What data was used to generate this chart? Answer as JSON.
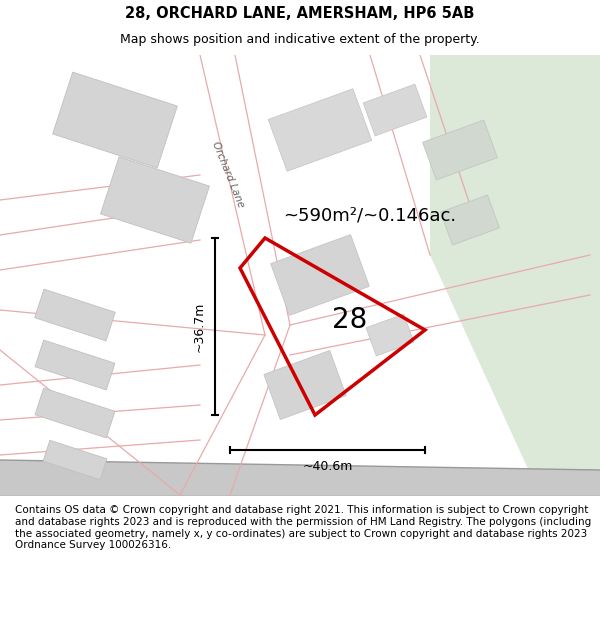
{
  "title": "28, ORCHARD LANE, AMERSHAM, HP6 5AB",
  "subtitle": "Map shows position and indicative extent of the property.",
  "area_text": "~590m²/~0.146ac.",
  "label_28": "28",
  "dim_vertical": "~36.7m",
  "dim_horizontal": "~40.6m",
  "road_label": "Orchard Lane",
  "footer_text": "Contains OS data © Crown copyright and database right 2021. This information is subject to Crown copyright and database rights 2023 and is reproduced with the permission of HM Land Registry. The polygons (including the associated geometry, namely x, y co-ordinates) are subject to Crown copyright and database rights 2023 Ordnance Survey 100026316.",
  "map_bg": "#ffffff",
  "green_area": "#dce8d8",
  "plot_outline_color": "#cc0000",
  "road_line_color": "#e8aaaa",
  "road_fill_color": "#e8d8d8",
  "building_fill": "#d4d4d4",
  "building_edge": "#c0c0c0",
  "title_fontsize": 10.5,
  "subtitle_fontsize": 9,
  "footer_fontsize": 7.5
}
